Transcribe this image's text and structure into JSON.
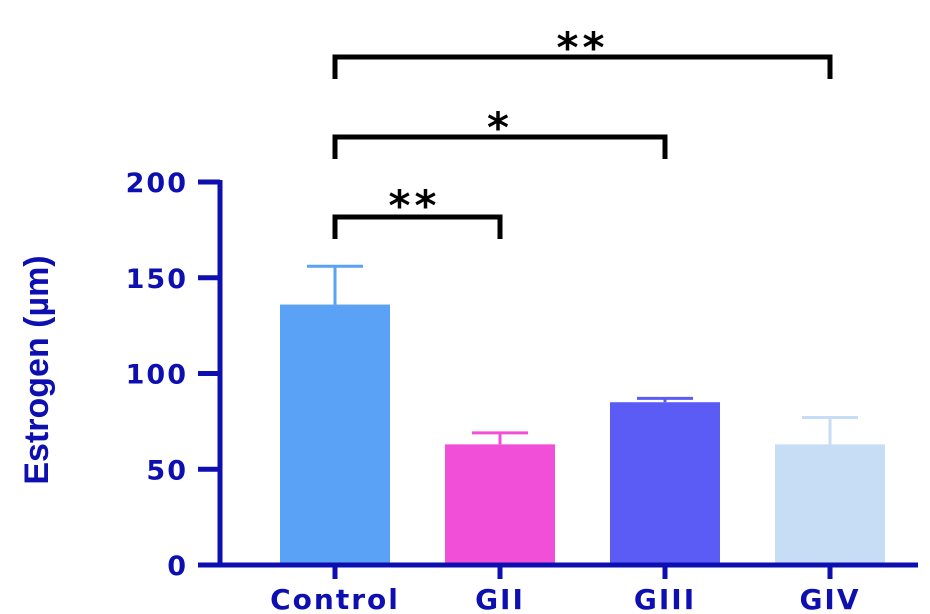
{
  "chart_data": {
    "type": "bar",
    "ylabel": "Estrogen (µm)",
    "ylim": [
      0,
      200
    ],
    "yticks": [
      "0",
      "50",
      "100",
      "150",
      "200"
    ],
    "categories": [
      "Control",
      "GII",
      "GIII",
      "GIV"
    ],
    "values": [
      136,
      63,
      85,
      63
    ],
    "errors": [
      20,
      6,
      2,
      14
    ],
    "colors": [
      "#5aa2f5",
      "#f24fd8",
      "#5a5cf5",
      "#c7ddf5"
    ],
    "axis_color": "#0d0fb0",
    "significance": [
      {
        "from": "Control",
        "to": "GII",
        "label": "**"
      },
      {
        "from": "Control",
        "to": "GIII",
        "label": "*"
      },
      {
        "from": "Control",
        "to": "GIV",
        "label": "**"
      }
    ]
  }
}
